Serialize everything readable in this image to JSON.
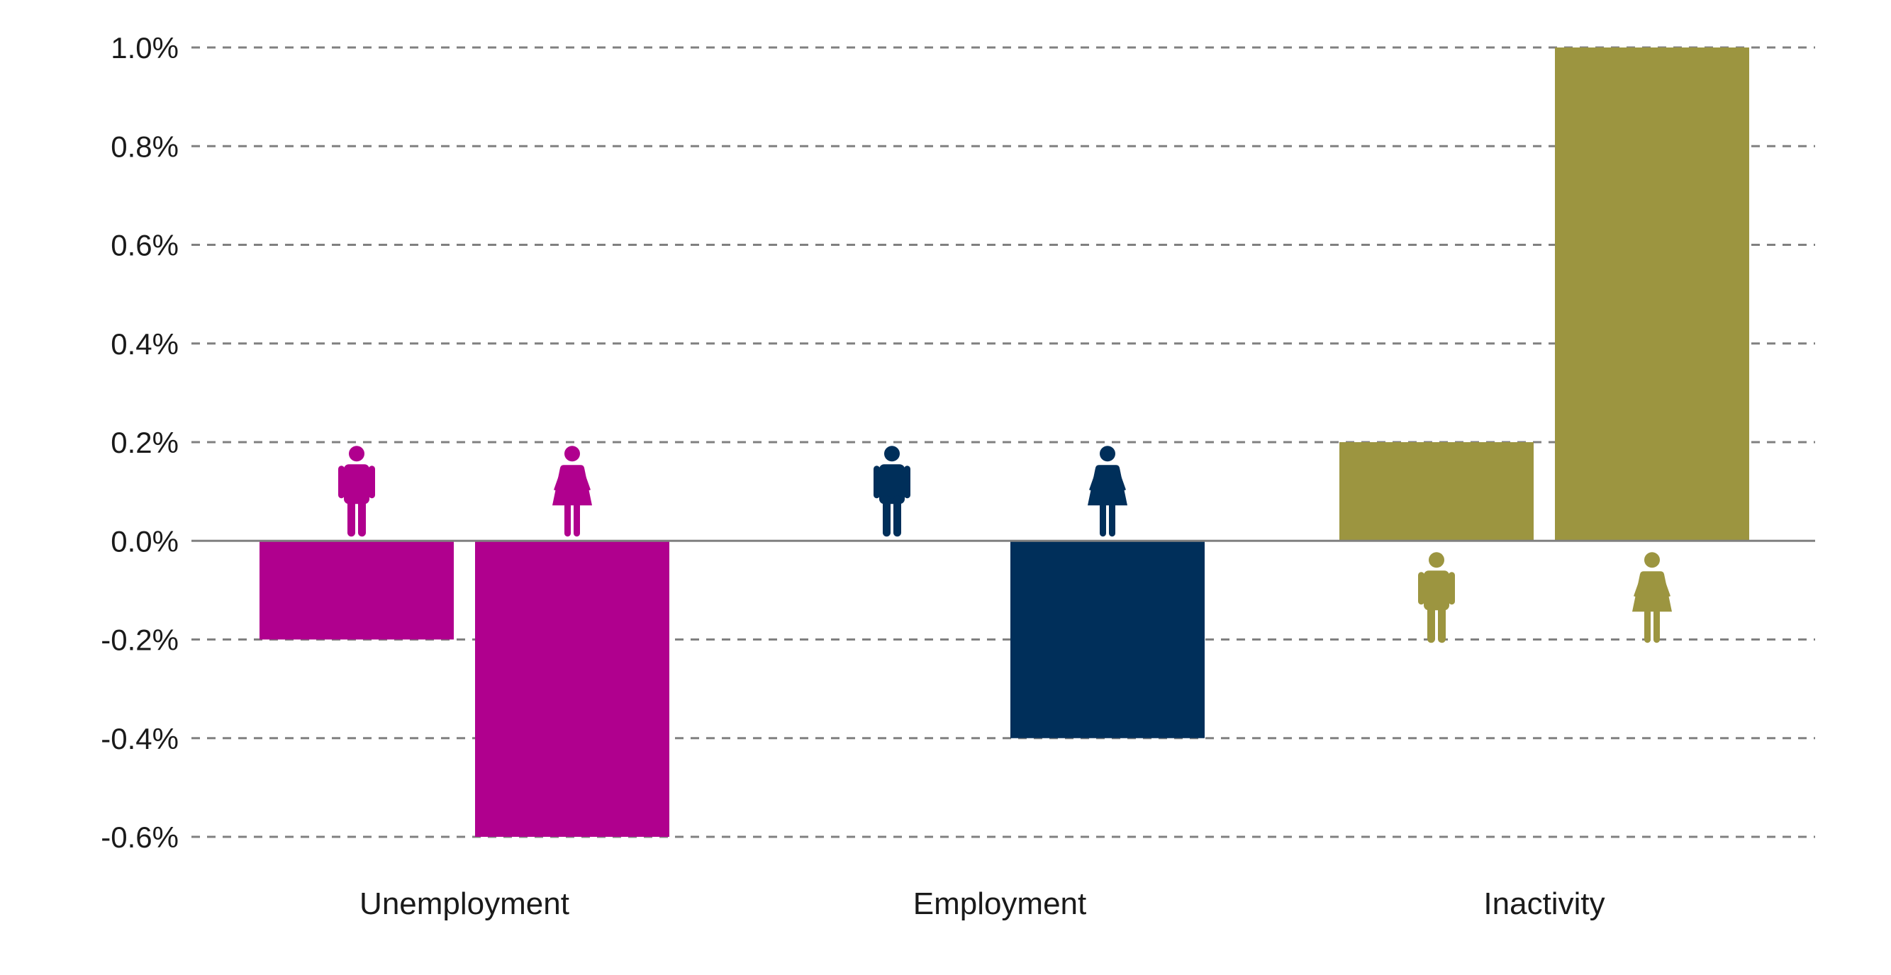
{
  "chart_data": {
    "type": "bar",
    "title": "",
    "xlabel": "",
    "ylabel": "",
    "categories": [
      "Unemployment",
      "Employment",
      "Inactivity"
    ],
    "series": [
      {
        "icon": "male-figure-icon",
        "values": [
          -0.2,
          0.0,
          0.2
        ]
      },
      {
        "icon": "female-figure-icon",
        "values": [
          -0.6,
          -0.4,
          1.0
        ]
      }
    ],
    "category_colors": [
      "#b0008e",
      "#002f5a",
      "#9c9540"
    ],
    "ylim": [
      -0.6,
      1.0
    ],
    "yticks": [
      1.0,
      0.8,
      0.6,
      0.4,
      0.2,
      0.0,
      -0.2,
      -0.4,
      -0.6
    ],
    "ytick_labels": [
      "1.0%",
      "0.8%",
      "0.6%",
      "0.4%",
      "0.2%",
      "0.0%",
      "-0.2%",
      "-0.4%",
      "-0.6%"
    ],
    "grid": true,
    "grid_style": "dashed",
    "legend": "none",
    "gridline_color": "#808080",
    "axis_color": "#808080"
  }
}
